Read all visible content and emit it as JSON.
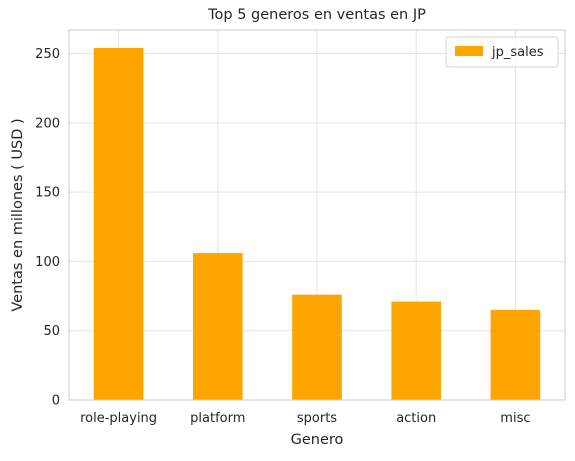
{
  "chart_data": {
    "type": "bar",
    "title": "Top 5 generos en ventas en JP",
    "xlabel": "Genero",
    "ylabel": "Ventas en millones ( USD )",
    "categories": [
      "role-playing",
      "platform",
      "sports",
      "action",
      "misc"
    ],
    "series": [
      {
        "name": "jp_sales",
        "values": [
          254,
          106,
          76,
          71,
          65
        ],
        "color": "#ffa500"
      }
    ],
    "ylim": [
      0,
      267
    ],
    "yticks": [
      0,
      50,
      100,
      150,
      200,
      250
    ],
    "grid": true,
    "legend": "top-right"
  }
}
